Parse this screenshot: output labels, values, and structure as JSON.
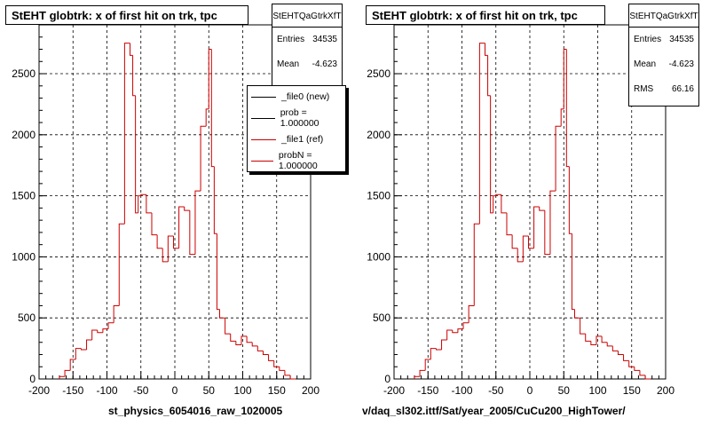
{
  "panels": [
    {
      "title": "StEHT globtrk: x of first hit on trk, tpc",
      "footer": "st_physics_6054016_raw_1020005",
      "stats": {
        "name": "StEHTQaGtrkXfT",
        "entries_label": "Entries",
        "entries": "34535",
        "mean_label": "Mean",
        "mean": "-4.623"
      },
      "legend": [
        {
          "label": "_file0 (new)",
          "color": "#000000"
        },
        {
          "label": "prob = 1.000000",
          "color": "#000000"
        },
        {
          "label": "_file1 (ref)",
          "color": "#cc0000"
        },
        {
          "label": "probN = 1.000000",
          "color": "#cc0000"
        }
      ]
    },
    {
      "title": "StEHT globtrk: x of first hit on trk, tpc",
      "footer": "v/daq_sl302.ittf/Sat/year_2005/CuCu200_HighTower/",
      "stats": {
        "name": "StEHTQaGtrkXfT",
        "entries_label": "Entries",
        "entries": "34535",
        "mean_label": "Mean",
        "mean": "-4.623",
        "rms_label": "RMS",
        "rms": "66.16"
      }
    }
  ],
  "chart_data": {
    "type": "histogram",
    "line_color": "#cc0000",
    "xlim": [
      -200,
      200
    ],
    "ylim": [
      0,
      2900
    ],
    "xticks": [
      -200,
      -150,
      -100,
      -50,
      0,
      50,
      100,
      150,
      200
    ],
    "yticks": [
      0,
      500,
      1000,
      1500,
      2000,
      2500
    ],
    "grid": true,
    "bin_edges": [
      -170,
      -162,
      -154,
      -146,
      -138,
      -130,
      -122,
      -114,
      -106,
      -98,
      -90,
      -82,
      -74,
      -66,
      -62,
      -58,
      -54,
      -50,
      -42,
      -34,
      -26,
      -18,
      -10,
      -2,
      6,
      14,
      22,
      30,
      38,
      46,
      50,
      54,
      58,
      62,
      66,
      74,
      82,
      90,
      98,
      106,
      114,
      122,
      130,
      138,
      146,
      154,
      162,
      170,
      178
    ],
    "counts": [
      20,
      70,
      160,
      250,
      240,
      320,
      400,
      380,
      410,
      460,
      600,
      1270,
      2750,
      2650,
      2320,
      1360,
      1500,
      1510,
      1360,
      1180,
      1070,
      960,
      1170,
      1070,
      1410,
      1380,
      1020,
      1540,
      2070,
      2210,
      2700,
      1740,
      1190,
      570,
      500,
      370,
      310,
      280,
      350,
      300,
      270,
      230,
      200,
      150,
      100,
      70,
      30,
      0
    ]
  }
}
